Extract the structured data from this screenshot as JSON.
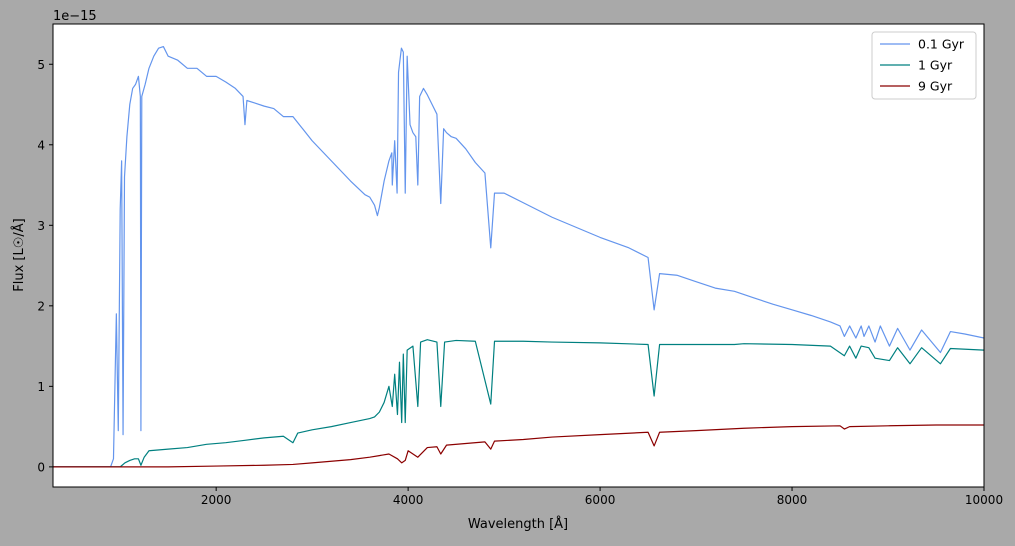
{
  "chart_data": {
    "type": "line",
    "xlabel": "Wavelength [Å]",
    "ylabel": "Flux [L☉/Å]",
    "offset_label": "1e−15",
    "xlim": [
      300,
      10000
    ],
    "ylim": [
      -0.25,
      5.5
    ],
    "x_ticks": [
      2000,
      4000,
      6000,
      8000,
      10000
    ],
    "x_tick_labels": [
      "2000",
      "4000",
      "6000",
      "8000",
      "10000"
    ],
    "y_ticks": [
      0,
      1,
      2,
      3,
      4,
      5
    ],
    "y_tick_labels": [
      "0",
      "1",
      "2",
      "3",
      "4",
      "5"
    ],
    "y_scale_multiplier": 1e-15,
    "grid": false,
    "legend_position": "top-right",
    "series": [
      {
        "name": "0.1 Gyr",
        "color": "#6495ed",
        "points": [
          [
            300,
            0
          ],
          [
            900,
            0
          ],
          [
            930,
            0.1
          ],
          [
            960,
            1.9
          ],
          [
            980,
            0.45
          ],
          [
            1000,
            3.2
          ],
          [
            1015,
            3.8
          ],
          [
            1030,
            0.4
          ],
          [
            1045,
            3.6
          ],
          [
            1070,
            4.1
          ],
          [
            1100,
            4.5
          ],
          [
            1130,
            4.7
          ],
          [
            1160,
            4.75
          ],
          [
            1190,
            4.85
          ],
          [
            1210,
            4.6
          ],
          [
            1216,
            0.45
          ],
          [
            1225,
            4.6
          ],
          [
            1260,
            4.75
          ],
          [
            1300,
            4.95
          ],
          [
            1350,
            5.1
          ],
          [
            1400,
            5.2
          ],
          [
            1450,
            5.22
          ],
          [
            1500,
            5.1
          ],
          [
            1600,
            5.05
          ],
          [
            1700,
            4.95
          ],
          [
            1800,
            4.95
          ],
          [
            1900,
            4.85
          ],
          [
            2000,
            4.85
          ],
          [
            2100,
            4.78
          ],
          [
            2200,
            4.7
          ],
          [
            2280,
            4.6
          ],
          [
            2300,
            4.25
          ],
          [
            2320,
            4.55
          ],
          [
            2400,
            4.52
          ],
          [
            2500,
            4.48
          ],
          [
            2600,
            4.45
          ],
          [
            2700,
            4.35
          ],
          [
            2800,
            4.35
          ],
          [
            2900,
            4.2
          ],
          [
            3000,
            4.05
          ],
          [
            3200,
            3.8
          ],
          [
            3400,
            3.55
          ],
          [
            3550,
            3.38
          ],
          [
            3600,
            3.35
          ],
          [
            3650,
            3.25
          ],
          [
            3680,
            3.12
          ],
          [
            3700,
            3.22
          ],
          [
            3750,
            3.55
          ],
          [
            3800,
            3.8
          ],
          [
            3830,
            3.9
          ],
          [
            3835,
            3.5
          ],
          [
            3860,
            4.05
          ],
          [
            3885,
            3.4
          ],
          [
            3900,
            4.9
          ],
          [
            3930,
            5.2
          ],
          [
            3950,
            5.15
          ],
          [
            3970,
            3.4
          ],
          [
            3990,
            5.1
          ],
          [
            4020,
            4.25
          ],
          [
            4050,
            4.15
          ],
          [
            4080,
            4.1
          ],
          [
            4101,
            3.5
          ],
          [
            4120,
            4.6
          ],
          [
            4160,
            4.7
          ],
          [
            4200,
            4.62
          ],
          [
            4250,
            4.5
          ],
          [
            4300,
            4.38
          ],
          [
            4340,
            3.27
          ],
          [
            4370,
            4.2
          ],
          [
            4400,
            4.15
          ],
          [
            4450,
            4.1
          ],
          [
            4500,
            4.08
          ],
          [
            4600,
            3.95
          ],
          [
            4700,
            3.78
          ],
          [
            4800,
            3.65
          ],
          [
            4861,
            2.72
          ],
          [
            4900,
            3.4
          ],
          [
            5000,
            3.4
          ],
          [
            5200,
            3.28
          ],
          [
            5500,
            3.1
          ],
          [
            6000,
            2.85
          ],
          [
            6300,
            2.72
          ],
          [
            6500,
            2.6
          ],
          [
            6563,
            1.95
          ],
          [
            6620,
            2.4
          ],
          [
            6800,
            2.38
          ],
          [
            7000,
            2.3
          ],
          [
            7200,
            2.22
          ],
          [
            7400,
            2.18
          ],
          [
            7600,
            2.1
          ],
          [
            7800,
            2.02
          ],
          [
            8000,
            1.95
          ],
          [
            8200,
            1.88
          ],
          [
            8400,
            1.8
          ],
          [
            8500,
            1.75
          ],
          [
            8545,
            1.62
          ],
          [
            8600,
            1.75
          ],
          [
            8665,
            1.6
          ],
          [
            8720,
            1.75
          ],
          [
            8750,
            1.62
          ],
          [
            8800,
            1.75
          ],
          [
            8865,
            1.55
          ],
          [
            8920,
            1.75
          ],
          [
            9015,
            1.5
          ],
          [
            9100,
            1.72
          ],
          [
            9229,
            1.45
          ],
          [
            9350,
            1.7
          ],
          [
            9546,
            1.42
          ],
          [
            9650,
            1.68
          ],
          [
            9800,
            1.65
          ],
          [
            10000,
            1.6
          ]
        ]
      },
      {
        "name": "1 Gyr",
        "color": "#008080",
        "points": [
          [
            300,
            0
          ],
          [
            1000,
            0.0
          ],
          [
            1050,
            0.05
          ],
          [
            1100,
            0.08
          ],
          [
            1150,
            0.1
          ],
          [
            1190,
            0.1
          ],
          [
            1216,
            0.02
          ],
          [
            1250,
            0.12
          ],
          [
            1300,
            0.2
          ],
          [
            1500,
            0.22
          ],
          [
            1700,
            0.24
          ],
          [
            1900,
            0.28
          ],
          [
            2100,
            0.3
          ],
          [
            2300,
            0.33
          ],
          [
            2500,
            0.36
          ],
          [
            2700,
            0.38
          ],
          [
            2800,
            0.3
          ],
          [
            2850,
            0.42
          ],
          [
            3000,
            0.46
          ],
          [
            3200,
            0.5
          ],
          [
            3400,
            0.55
          ],
          [
            3600,
            0.6
          ],
          [
            3650,
            0.62
          ],
          [
            3700,
            0.68
          ],
          [
            3750,
            0.8
          ],
          [
            3800,
            1.0
          ],
          [
            3835,
            0.75
          ],
          [
            3860,
            1.15
          ],
          [
            3889,
            0.65
          ],
          [
            3910,
            1.3
          ],
          [
            3933,
            0.55
          ],
          [
            3950,
            1.4
          ],
          [
            3970,
            0.55
          ],
          [
            3990,
            1.45
          ],
          [
            4050,
            1.5
          ],
          [
            4101,
            0.75
          ],
          [
            4130,
            1.55
          ],
          [
            4200,
            1.58
          ],
          [
            4300,
            1.55
          ],
          [
            4340,
            0.75
          ],
          [
            4380,
            1.55
          ],
          [
            4500,
            1.57
          ],
          [
            4700,
            1.56
          ],
          [
            4861,
            0.78
          ],
          [
            4900,
            1.56
          ],
          [
            5200,
            1.56
          ],
          [
            5500,
            1.55
          ],
          [
            6000,
            1.54
          ],
          [
            6500,
            1.52
          ],
          [
            6563,
            0.88
          ],
          [
            6620,
            1.52
          ],
          [
            7000,
            1.52
          ],
          [
            7400,
            1.52
          ],
          [
            7500,
            1.53
          ],
          [
            8000,
            1.52
          ],
          [
            8400,
            1.5
          ],
          [
            8545,
            1.38
          ],
          [
            8600,
            1.5
          ],
          [
            8665,
            1.35
          ],
          [
            8720,
            1.5
          ],
          [
            8800,
            1.48
          ],
          [
            8865,
            1.35
          ],
          [
            9015,
            1.32
          ],
          [
            9100,
            1.48
          ],
          [
            9229,
            1.28
          ],
          [
            9350,
            1.48
          ],
          [
            9546,
            1.28
          ],
          [
            9650,
            1.47
          ],
          [
            10000,
            1.45
          ]
        ]
      },
      {
        "name": "9 Gyr",
        "color": "#8b0000",
        "points": [
          [
            300,
            0
          ],
          [
            1500,
            0.0
          ],
          [
            2000,
            0.01
          ],
          [
            2500,
            0.02
          ],
          [
            2800,
            0.03
          ],
          [
            3000,
            0.05
          ],
          [
            3200,
            0.07
          ],
          [
            3400,
            0.09
          ],
          [
            3600,
            0.12
          ],
          [
            3700,
            0.14
          ],
          [
            3800,
            0.16
          ],
          [
            3889,
            0.1
          ],
          [
            3933,
            0.05
          ],
          [
            3970,
            0.08
          ],
          [
            4000,
            0.2
          ],
          [
            4101,
            0.12
          ],
          [
            4200,
            0.24
          ],
          [
            4300,
            0.25
          ],
          [
            4340,
            0.16
          ],
          [
            4400,
            0.27
          ],
          [
            4600,
            0.29
          ],
          [
            4800,
            0.31
          ],
          [
            4861,
            0.22
          ],
          [
            4900,
            0.32
          ],
          [
            5200,
            0.34
          ],
          [
            5500,
            0.37
          ],
          [
            6000,
            0.4
          ],
          [
            6500,
            0.43
          ],
          [
            6563,
            0.26
          ],
          [
            6620,
            0.43
          ],
          [
            7000,
            0.45
          ],
          [
            7500,
            0.48
          ],
          [
            8000,
            0.5
          ],
          [
            8500,
            0.51
          ],
          [
            8545,
            0.47
          ],
          [
            8600,
            0.5
          ],
          [
            9000,
            0.51
          ],
          [
            9500,
            0.52
          ],
          [
            10000,
            0.52
          ]
        ]
      }
    ]
  }
}
